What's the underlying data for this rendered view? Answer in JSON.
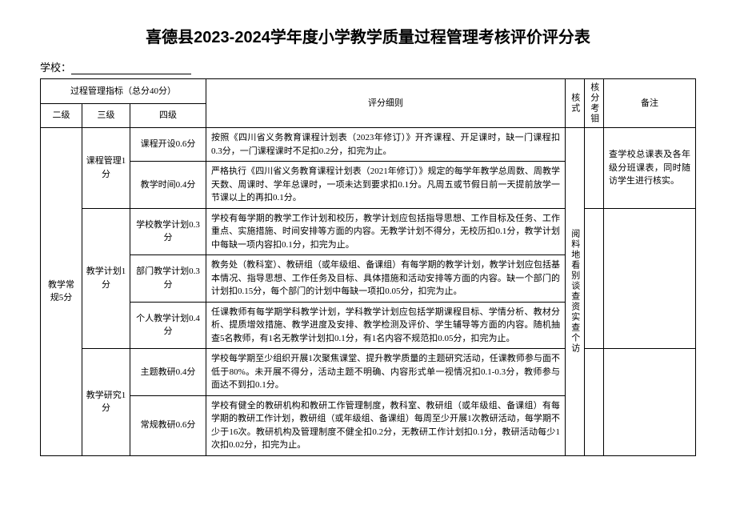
{
  "title": "喜德县2023-2024学年度小学教学质量过程管理考核评价评分表",
  "school_label": "学校：",
  "headers": {
    "indicator_group": "过程管理指标（总分40分）",
    "level2": "二级",
    "level3": "三级",
    "level4": "四级",
    "detail": "评分细则",
    "mode": "核式",
    "score": "核分考钼",
    "remark": "备注"
  },
  "level2_label": "教学常规5分",
  "mode_text": "阅料地看别谈查资实查个访",
  "sections": [
    {
      "level3": "课程管理1分",
      "rows": [
        {
          "level4": "课程开设0.6分",
          "detail": "按照《四川省义务教育课程计划表（2023年修订）》开齐课程、开足课时，缺一门课程扣0.3分，一门课程课时不足扣0.2分，扣完为止。"
        },
        {
          "level4": "教学时间0.4分",
          "detail": "严格执行《四川省义务教育课程计划表（2021年修订）》规定的每学年教学总周数、周教学天数、周课时、学年总课时，一项未达到要求扣0.1分。凡周五或节假日前一天提前放学一节课以上的再扣0.1分。"
        }
      ],
      "remark": "查学校总课表及各年级分班课表，同时随访学生进行核实。"
    },
    {
      "level3": "教学计划1分",
      "rows": [
        {
          "level4": "学校教学计划0.3分",
          "detail": "学校有每学期的教学工作计划和校历，教学计划应包括指导思想、工作目标及任务、工作重点、实施措施、时间安排等方面的内容。无教学计划不得分，无校历扣0.1分，教学计划中每缺一项内容扣0.1分，扣完为止。"
        },
        {
          "level4": "部门教学计划0.3分",
          "detail": "教务处（教科室）、教研组（或年级组、备课组）有每学期的教学计划，教学计划应包括基本情况、指导思想、工作任务及目标、具体措施和活动安排等方面的内容。缺一个部门的计划扣0.15分，每个部门的计划中每缺一项扣0.05分，扣完为止。"
        },
        {
          "level4": "个人教学计划0.4分",
          "detail": "任课教师有每学期学科教学计划，学科教学计划应包括学期课程目标、学情分析、教材分析、提质增效措施、教学进度及安排、教学检测及评价、学生辅导等方面的内容。随机抽查5名教师，有1名无教学计划扣0.1分，有1名内容不规范扣0.05分，扣完为止。"
        }
      ],
      "remark": ""
    },
    {
      "level3": "教学研究1分",
      "rows": [
        {
          "level4": "主题教研0.4分",
          "detail": "学校每学期至少组织开展1次聚焦课堂、提升教学质量的主题研究活动，任课教师参与面不低于80%。未开展不得分，活动主题不明确、内容形式单一视情况扣0.1-0.3分，教师参与面达不到扣0.1分。"
        },
        {
          "level4": "常规教研0.6分",
          "detail": "学校有健全的教研机构和教研工作管理制度，教科室、教研组（或年级组、备课组）有每学期的教研工作计划，教研组（或年级组、备课组）每周至少开展1次教研活动，每学期不少于16次。教研机构及管理制度不健全扣0.2分，无教研工作计划扣0.1分，教研活动每少1次扣0.02分，扣完为止。"
        }
      ],
      "remark": ""
    }
  ]
}
